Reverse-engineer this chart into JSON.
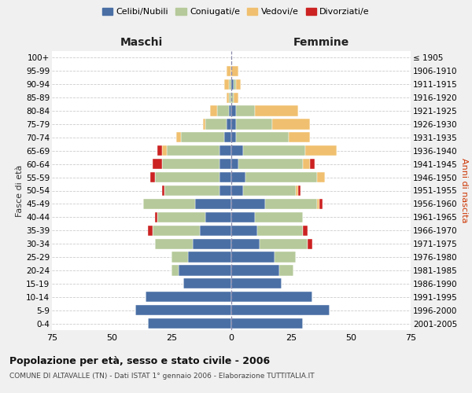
{
  "age_groups": [
    "0-4",
    "5-9",
    "10-14",
    "15-19",
    "20-24",
    "25-29",
    "30-34",
    "35-39",
    "40-44",
    "45-49",
    "50-54",
    "55-59",
    "60-64",
    "65-69",
    "70-74",
    "75-79",
    "80-84",
    "85-89",
    "90-94",
    "95-99",
    "100+"
  ],
  "birth_years": [
    "2001-2005",
    "1996-2000",
    "1991-1995",
    "1986-1990",
    "1981-1985",
    "1976-1980",
    "1971-1975",
    "1966-1970",
    "1961-1965",
    "1956-1960",
    "1951-1955",
    "1946-1950",
    "1941-1945",
    "1936-1940",
    "1931-1935",
    "1926-1930",
    "1921-1925",
    "1916-1920",
    "1911-1915",
    "1906-1910",
    "≤ 1905"
  ],
  "colors": {
    "celibi": "#4a6fa5",
    "coniugati": "#b5c99a",
    "vedovi": "#f0c070",
    "divorziati": "#cc2222"
  },
  "males": {
    "celibi": [
      35,
      40,
      36,
      20,
      22,
      18,
      16,
      13,
      11,
      15,
      5,
      5,
      5,
      5,
      3,
      2,
      1,
      0,
      0,
      0,
      0
    ],
    "coniugati": [
      0,
      0,
      0,
      0,
      3,
      7,
      16,
      20,
      20,
      22,
      23,
      27,
      24,
      22,
      18,
      9,
      5,
      1,
      1,
      0,
      0
    ],
    "vedovi": [
      0,
      0,
      0,
      0,
      0,
      0,
      0,
      0,
      0,
      0,
      0,
      0,
      0,
      2,
      2,
      1,
      3,
      1,
      2,
      2,
      0
    ],
    "divorziati": [
      0,
      0,
      0,
      0,
      0,
      0,
      0,
      2,
      1,
      0,
      1,
      2,
      4,
      2,
      0,
      0,
      0,
      0,
      0,
      0,
      0
    ]
  },
  "females": {
    "celibi": [
      30,
      41,
      34,
      21,
      20,
      18,
      12,
      11,
      10,
      14,
      5,
      6,
      3,
      5,
      2,
      2,
      2,
      0,
      1,
      0,
      0
    ],
    "coniugati": [
      0,
      0,
      0,
      0,
      6,
      9,
      20,
      19,
      20,
      22,
      22,
      30,
      27,
      26,
      22,
      15,
      8,
      1,
      1,
      0,
      0
    ],
    "vedovi": [
      0,
      0,
      0,
      0,
      0,
      0,
      0,
      0,
      0,
      1,
      1,
      3,
      3,
      13,
      9,
      16,
      18,
      2,
      2,
      3,
      0
    ],
    "divorziati": [
      0,
      0,
      0,
      0,
      0,
      0,
      2,
      2,
      0,
      1,
      1,
      0,
      2,
      0,
      0,
      0,
      0,
      0,
      0,
      0,
      0
    ]
  },
  "xlim": 75,
  "title": "Popolazione per età, sesso e stato civile - 2006",
  "subtitle": "COMUNE DI ALTAVALLE (TN) - Dati ISTAT 1° gennaio 2006 - Elaborazione TUTTITALIA.IT",
  "ylabel": "Fasce di età",
  "ylabel_right": "Anni di nascita",
  "label_maschi": "Maschi",
  "label_femmine": "Femmine",
  "legend_labels": [
    "Celibi/Nubili",
    "Coniugati/e",
    "Vedovi/e",
    "Divorziati/e"
  ],
  "bg_color": "#f0f0f0",
  "plot_bg": "#ffffff"
}
